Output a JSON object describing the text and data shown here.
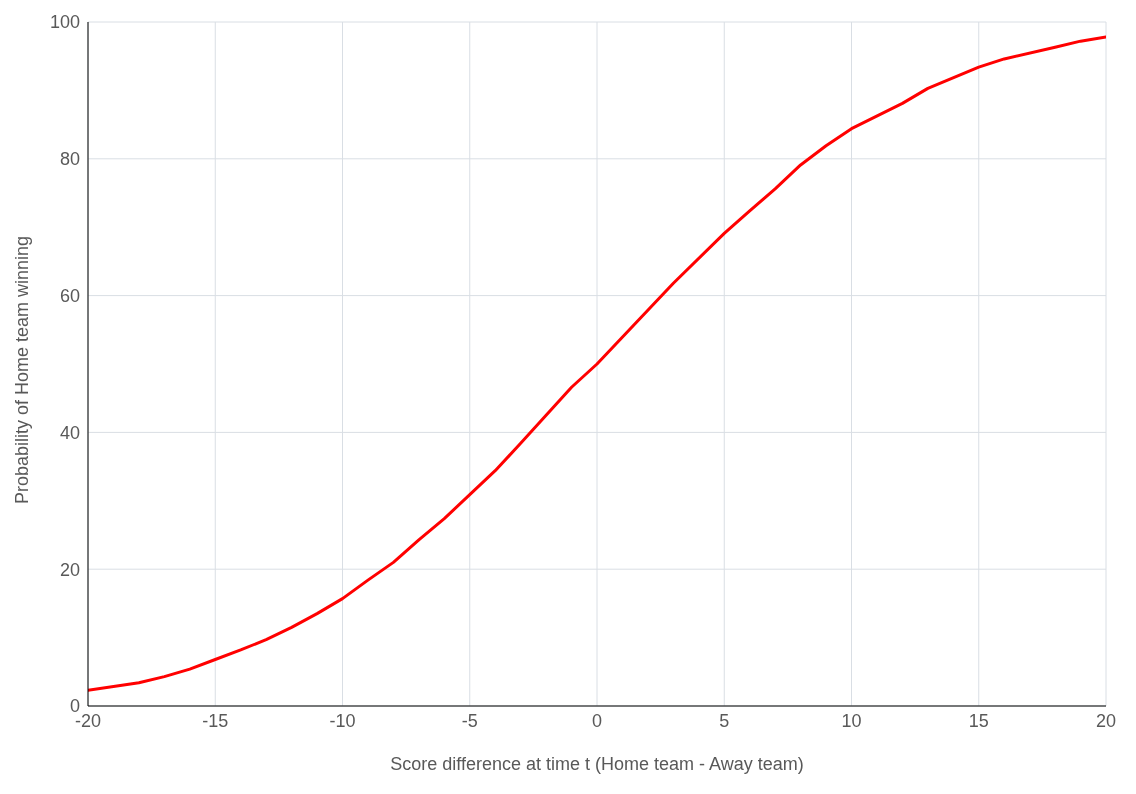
{
  "chart_data": {
    "type": "line",
    "xlabel": "Score difference at time t (Home team - Away team)",
    "ylabel": "Probability of Home team winning",
    "x": [
      -20,
      -18,
      -17,
      -16,
      -15,
      -14,
      -13,
      -12,
      -11,
      -10,
      -9,
      -8,
      -7,
      -6,
      -5,
      -4,
      -3,
      -2,
      -1,
      0,
      3,
      5,
      6,
      7,
      8,
      9,
      10,
      12,
      13,
      15,
      16,
      18,
      19,
      20
    ],
    "series": [
      {
        "color": "#ff0000",
        "values": [
          2.3,
          3.4,
          4.3,
          5.4,
          6.8,
          8.2,
          9.7,
          11.5,
          13.5,
          15.7,
          18.4,
          21,
          24.3,
          27.4,
          30.9,
          34.4,
          38.4,
          42.5,
          46.6,
          50,
          61.8,
          69.1,
          72.4,
          75.6,
          79.1,
          81.9,
          84.4,
          88.1,
          90.3,
          93.4,
          94.6,
          96.3,
          97.2,
          97.8
        ]
      }
    ],
    "xlim": [
      -20,
      20
    ],
    "xticks": [
      -20,
      -15,
      -10,
      -5,
      0,
      5,
      10,
      15,
      20
    ],
    "ylim": [
      0,
      100
    ],
    "yticks": [
      0,
      20,
      40,
      60,
      80,
      100
    ],
    "grid": true,
    "legend": false,
    "marker": "none",
    "line_style": "solid"
  }
}
